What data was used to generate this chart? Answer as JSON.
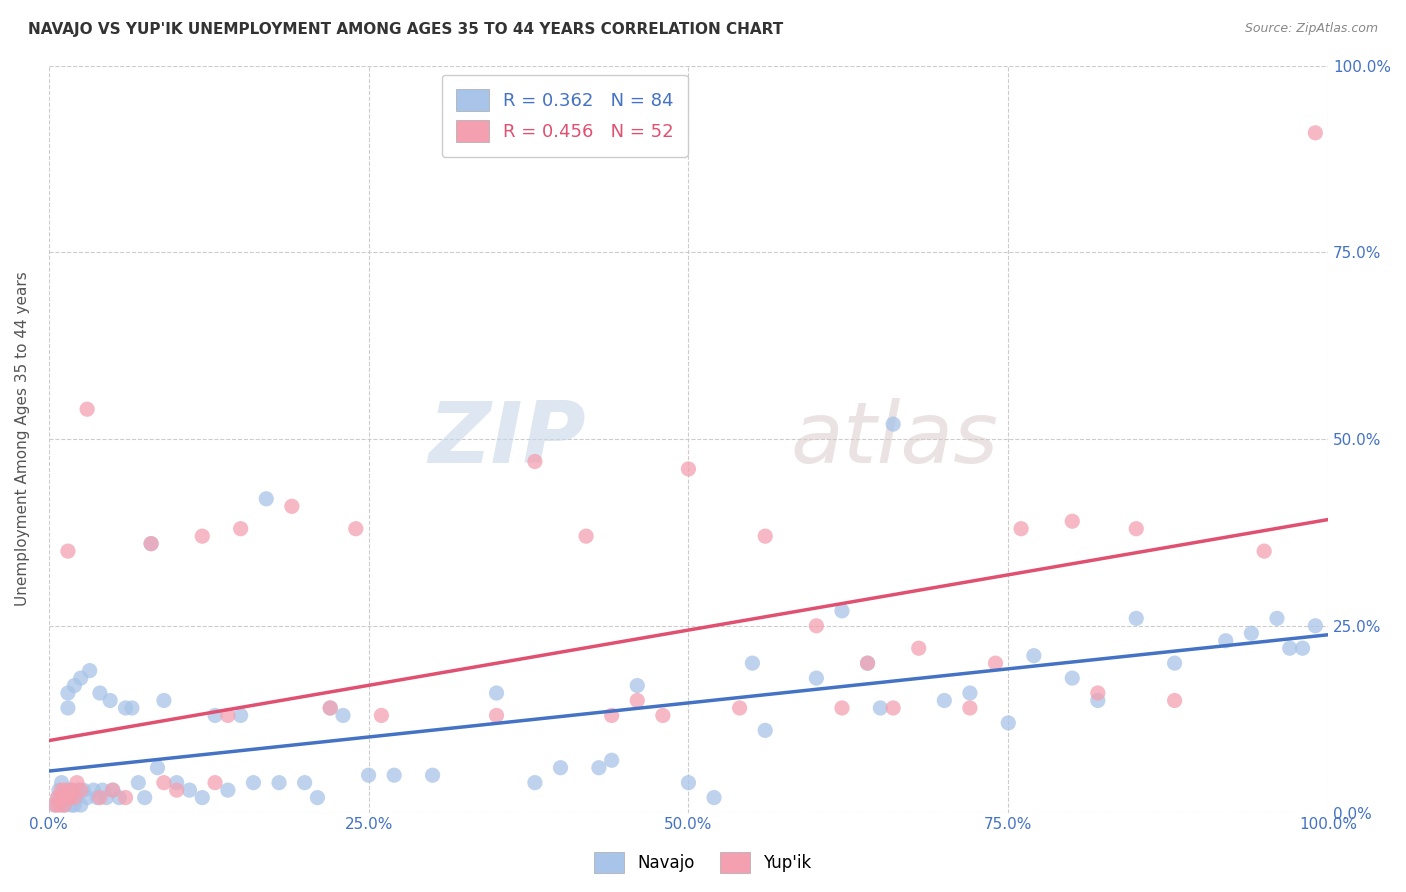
{
  "title": "NAVAJO VS YUP'IK UNEMPLOYMENT AMONG AGES 35 TO 44 YEARS CORRELATION CHART",
  "source": "Source: ZipAtlas.com",
  "ylabel": "Unemployment Among Ages 35 to 44 years",
  "xlim": [
    0,
    1.0
  ],
  "ylim": [
    0,
    1.0
  ],
  "xticks": [
    0.0,
    0.25,
    0.5,
    0.75,
    1.0
  ],
  "yticks": [
    0.0,
    0.25,
    0.5,
    0.75,
    1.0
  ],
  "xticklabels": [
    "0.0%",
    "25.0%",
    "50.0%",
    "75.0%",
    "100.0%"
  ],
  "right_yticklabels": [
    "0.0%",
    "25.0%",
    "50.0%",
    "75.0%",
    "100.0%"
  ],
  "navajo_R": 0.362,
  "navajo_N": 84,
  "yupik_R": 0.456,
  "yupik_N": 52,
  "navajo_color": "#a8c4e8",
  "yupik_color": "#f4a0b0",
  "navajo_line_color": "#4472c4",
  "yupik_line_color": "#e05070",
  "legend_label_navajo": "Navajo",
  "legend_label_yupik": "Yup'ik",
  "grid_color": "#cccccc",
  "background_color": "#ffffff",
  "watermark_zip": "ZIP",
  "watermark_atlas": "atlas",
  "navajo_x": [
    0.005,
    0.007,
    0.008,
    0.01,
    0.01,
    0.01,
    0.012,
    0.013,
    0.015,
    0.015,
    0.015,
    0.016,
    0.017,
    0.018,
    0.018,
    0.02,
    0.02,
    0.022,
    0.023,
    0.025,
    0.025,
    0.027,
    0.03,
    0.032,
    0.035,
    0.038,
    0.04,
    0.042,
    0.045,
    0.048,
    0.05,
    0.055,
    0.06,
    0.065,
    0.07,
    0.075,
    0.08,
    0.085,
    0.09,
    0.1,
    0.11,
    0.12,
    0.13,
    0.14,
    0.15,
    0.16,
    0.17,
    0.18,
    0.2,
    0.21,
    0.22,
    0.23,
    0.25,
    0.27,
    0.3,
    0.35,
    0.38,
    0.4,
    0.43,
    0.44,
    0.46,
    0.5,
    0.52,
    0.55,
    0.56,
    0.6,
    0.62,
    0.64,
    0.65,
    0.66,
    0.7,
    0.72,
    0.75,
    0.77,
    0.8,
    0.82,
    0.85,
    0.88,
    0.92,
    0.94,
    0.96,
    0.97,
    0.98,
    0.99
  ],
  "navajo_y": [
    0.01,
    0.02,
    0.03,
    0.01,
    0.02,
    0.04,
    0.02,
    0.01,
    0.03,
    0.14,
    0.16,
    0.02,
    0.03,
    0.01,
    0.02,
    0.01,
    0.17,
    0.02,
    0.03,
    0.01,
    0.18,
    0.03,
    0.02,
    0.19,
    0.03,
    0.02,
    0.16,
    0.03,
    0.02,
    0.15,
    0.03,
    0.02,
    0.14,
    0.14,
    0.04,
    0.02,
    0.36,
    0.06,
    0.15,
    0.04,
    0.03,
    0.02,
    0.13,
    0.03,
    0.13,
    0.04,
    0.42,
    0.04,
    0.04,
    0.02,
    0.14,
    0.13,
    0.05,
    0.05,
    0.05,
    0.16,
    0.04,
    0.06,
    0.06,
    0.07,
    0.17,
    0.04,
    0.02,
    0.2,
    0.11,
    0.18,
    0.27,
    0.2,
    0.14,
    0.52,
    0.15,
    0.16,
    0.12,
    0.21,
    0.18,
    0.15,
    0.26,
    0.2,
    0.23,
    0.24,
    0.26,
    0.22,
    0.22,
    0.25
  ],
  "yupik_x": [
    0.005,
    0.007,
    0.008,
    0.01,
    0.01,
    0.012,
    0.013,
    0.015,
    0.015,
    0.016,
    0.018,
    0.02,
    0.022,
    0.025,
    0.03,
    0.04,
    0.05,
    0.06,
    0.08,
    0.09,
    0.1,
    0.12,
    0.13,
    0.14,
    0.15,
    0.19,
    0.22,
    0.24,
    0.26,
    0.35,
    0.38,
    0.42,
    0.44,
    0.46,
    0.48,
    0.5,
    0.54,
    0.56,
    0.6,
    0.62,
    0.64,
    0.66,
    0.68,
    0.72,
    0.74,
    0.76,
    0.8,
    0.82,
    0.85,
    0.88,
    0.95,
    0.99
  ],
  "yupik_y": [
    0.01,
    0.02,
    0.01,
    0.03,
    0.02,
    0.01,
    0.03,
    0.02,
    0.35,
    0.02,
    0.03,
    0.02,
    0.04,
    0.03,
    0.54,
    0.02,
    0.03,
    0.02,
    0.36,
    0.04,
    0.03,
    0.37,
    0.04,
    0.13,
    0.38,
    0.41,
    0.14,
    0.38,
    0.13,
    0.13,
    0.47,
    0.37,
    0.13,
    0.15,
    0.13,
    0.46,
    0.14,
    0.37,
    0.25,
    0.14,
    0.2,
    0.14,
    0.22,
    0.14,
    0.2,
    0.38,
    0.39,
    0.16,
    0.38,
    0.15,
    0.35,
    0.91
  ]
}
